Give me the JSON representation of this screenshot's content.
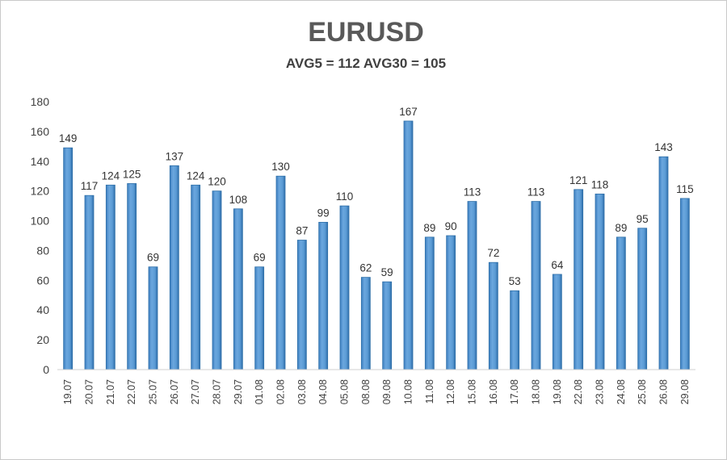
{
  "chart_data": {
    "type": "bar",
    "title": "EURUSD",
    "subtitle": "AVG5 = 112 AVG30 = 105",
    "xlabel": "",
    "ylabel": "",
    "ylim": [
      0,
      180
    ],
    "yticks": [
      0,
      20,
      40,
      60,
      80,
      100,
      120,
      140,
      160,
      180
    ],
    "grid": false,
    "legend": "none",
    "bar_color": "#5B9BD5",
    "bar_edge_color": "#2E6FA8",
    "categories": [
      "19.07",
      "20.07",
      "21.07",
      "22.07",
      "25.07",
      "26.07",
      "27.07",
      "28.07",
      "29.07",
      "01.08",
      "02.08",
      "03.08",
      "04.08",
      "05.08",
      "08.08",
      "09.08",
      "10.08",
      "11.08",
      "12.08",
      "15.08",
      "16.08",
      "17.08",
      "18.08",
      "19.08",
      "22.08",
      "23.08",
      "24.08",
      "25.08",
      "26.08",
      "29.08"
    ],
    "values": [
      149,
      117,
      124,
      125,
      69,
      137,
      124,
      120,
      108,
      69,
      130,
      87,
      99,
      110,
      62,
      59,
      167,
      89,
      90,
      113,
      72,
      53,
      113,
      64,
      121,
      118,
      89,
      95,
      143,
      115
    ]
  }
}
